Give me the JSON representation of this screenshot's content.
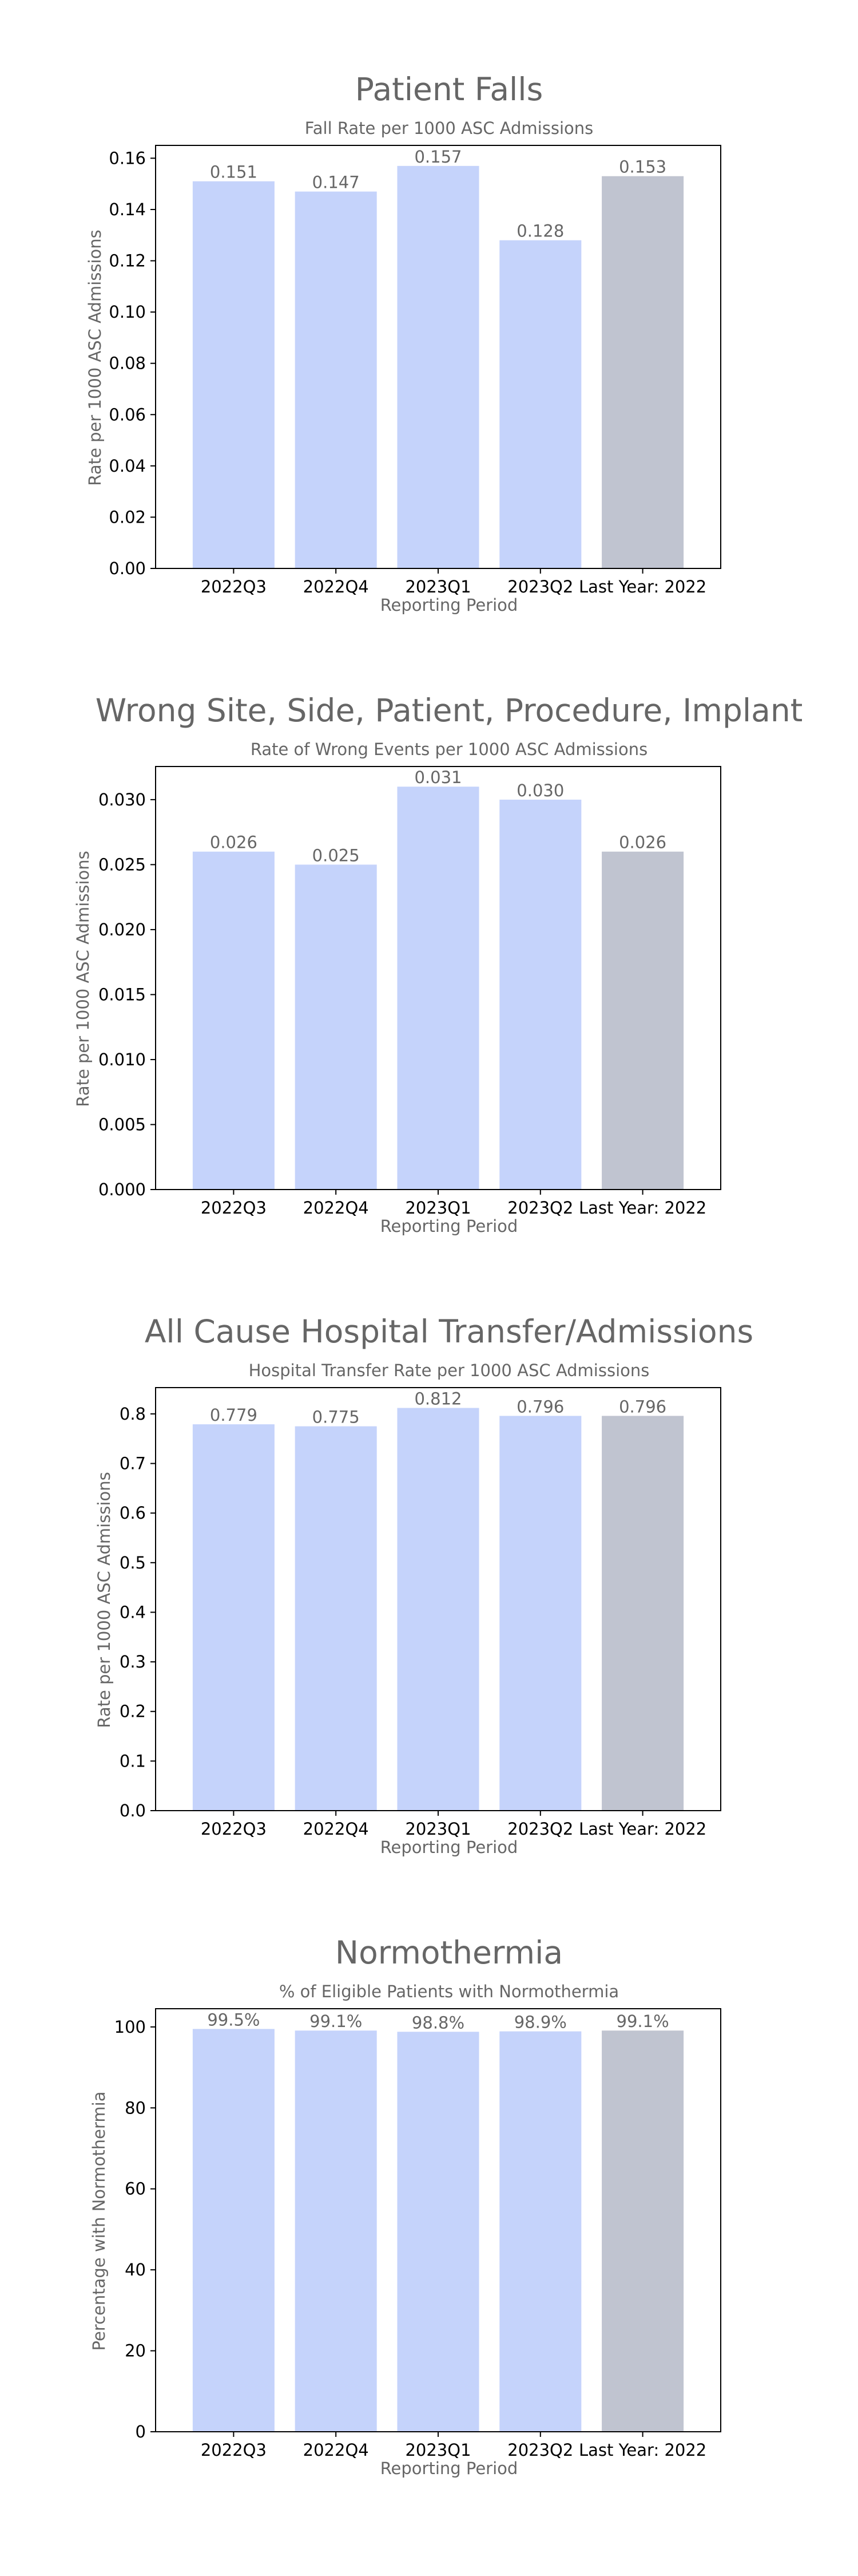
{
  "chart_data": [
    {
      "type": "bar",
      "title": "Patient Falls",
      "subtitle": "Fall Rate per 1000 ASC Admissions",
      "xlabel": "Reporting Period",
      "ylabel": "Rate per 1000 ASC Admissions",
      "categories": [
        "2022Q3",
        "2022Q4",
        "2023Q1",
        "2023Q2",
        "Last Year: 2022"
      ],
      "values": [
        0.151,
        0.147,
        0.157,
        0.128,
        0.153
      ],
      "value_labels": [
        "0.151",
        "0.147",
        "0.157",
        "0.128",
        "0.153"
      ],
      "ylim": [
        0,
        0.165
      ],
      "yticks": [
        0,
        0.02,
        0.04,
        0.06,
        0.08,
        0.1,
        0.12,
        0.14,
        0.16
      ],
      "ytick_labels": [
        "0.00",
        "0.02",
        "0.04",
        "0.06",
        "0.08",
        "0.10",
        "0.12",
        "0.14",
        "0.16"
      ],
      "colors": [
        "#c5d3fb",
        "#c5d3fb",
        "#c5d3fb",
        "#c5d3fb",
        "#c0c4d0"
      ],
      "grid": false
    },
    {
      "type": "bar",
      "title": "Wrong Site, Side, Patient, Procedure, Implant",
      "subtitle": "Rate of Wrong Events per 1000 ASC Admissions",
      "xlabel": "Reporting Period",
      "ylabel": "Rate per 1000 ASC Admissions",
      "categories": [
        "2022Q3",
        "2022Q4",
        "2023Q1",
        "2023Q2",
        "Last Year: 2022"
      ],
      "values": [
        0.026,
        0.025,
        0.031,
        0.03,
        0.026
      ],
      "value_labels": [
        "0.026",
        "0.025",
        "0.031",
        "0.030",
        "0.026"
      ],
      "ylim": [
        0,
        0.03255
      ],
      "yticks": [
        0,
        0.005,
        0.01,
        0.015,
        0.02,
        0.025,
        0.03
      ],
      "ytick_labels": [
        "0.000",
        "0.005",
        "0.010",
        "0.015",
        "0.020",
        "0.025",
        "0.030"
      ],
      "colors": [
        "#c5d3fb",
        "#c5d3fb",
        "#c5d3fb",
        "#c5d3fb",
        "#c0c4d0"
      ],
      "grid": false
    },
    {
      "type": "bar",
      "title": "All Cause Hospital Transfer/Admissions",
      "subtitle": "Hospital Transfer Rate per 1000 ASC Admissions",
      "xlabel": "Reporting Period",
      "ylabel": "Rate per 1000 ASC Admissions",
      "categories": [
        "2022Q3",
        "2022Q4",
        "2023Q1",
        "2023Q2",
        "Last Year: 2022"
      ],
      "values": [
        0.779,
        0.775,
        0.812,
        0.796,
        0.796
      ],
      "value_labels": [
        "0.779",
        "0.775",
        "0.812",
        "0.796",
        "0.796"
      ],
      "ylim": [
        0,
        0.853
      ],
      "yticks": [
        0,
        0.1,
        0.2,
        0.3,
        0.4,
        0.5,
        0.6,
        0.7,
        0.8
      ],
      "ytick_labels": [
        "0.0",
        "0.1",
        "0.2",
        "0.3",
        "0.4",
        "0.5",
        "0.6",
        "0.7",
        "0.8"
      ],
      "colors": [
        "#c5d3fb",
        "#c5d3fb",
        "#c5d3fb",
        "#c5d3fb",
        "#c0c4d0"
      ],
      "grid": false
    },
    {
      "type": "bar",
      "title": "Normothermia",
      "subtitle": "% of Eligible Patients with Normothermia",
      "xlabel": "Reporting Period",
      "ylabel": "Percentage with Normothermia",
      "categories": [
        "2022Q3",
        "2022Q4",
        "2023Q1",
        "2023Q2",
        "Last Year: 2022"
      ],
      "values": [
        99.5,
        99.1,
        98.8,
        98.9,
        99.1
      ],
      "value_labels": [
        "99.5%",
        "99.1%",
        "98.8%",
        "98.9%",
        "99.1%"
      ],
      "ylim": [
        0,
        104.5
      ],
      "yticks": [
        0,
        20,
        40,
        60,
        80,
        100
      ],
      "ytick_labels": [
        "0",
        "20",
        "40",
        "60",
        "80",
        "100"
      ],
      "colors": [
        "#c5d3fb",
        "#c5d3fb",
        "#c5d3fb",
        "#c5d3fb",
        "#c0c4d0"
      ],
      "grid": false
    }
  ]
}
